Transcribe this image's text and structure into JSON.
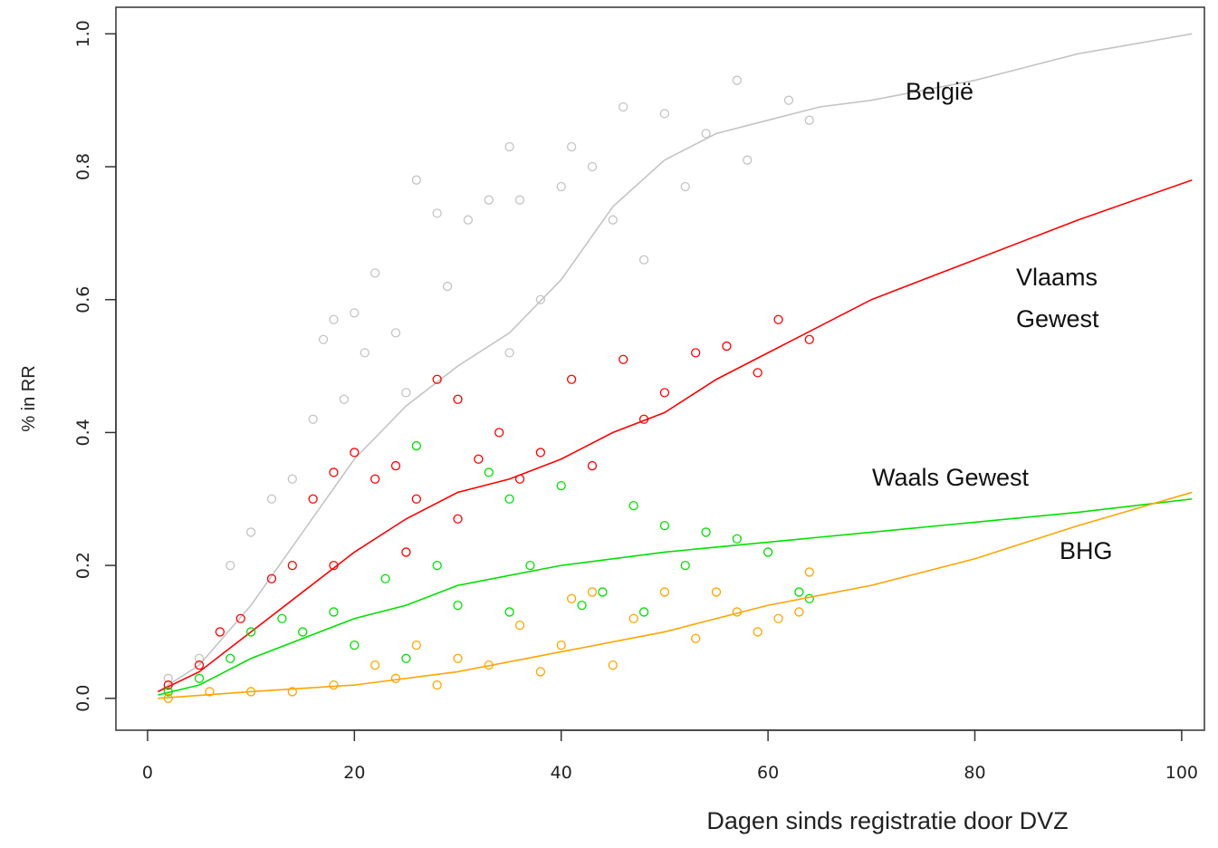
{
  "chart_data": {
    "type": "scatter",
    "x_label": "Dagen sinds registratie door DVZ",
    "y_label": "% in RR",
    "xlim": [
      -3.06,
      102.2
    ],
    "ylim": [
      -0.048,
      1.04
    ],
    "xticks": [
      0,
      20,
      40,
      60,
      80,
      100
    ],
    "yticks": [
      {
        "value": 0,
        "label": "0.0"
      },
      0.2,
      0.4,
      0.6,
      0.8,
      {
        "value": 1,
        "label": "1.0"
      }
    ],
    "series": [
      {
        "name": "België",
        "color": "#c4c4c4",
        "x": [
          2,
          5,
          8,
          10,
          12,
          14,
          16,
          17,
          18,
          20,
          21,
          22,
          24,
          26,
          28,
          29,
          31,
          33,
          35,
          36,
          38,
          40,
          41,
          43,
          45,
          46,
          48,
          50,
          52,
          54,
          57,
          58,
          62,
          64,
          30,
          35,
          25,
          19
        ],
        "values": [
          0.03,
          0.06,
          0.2,
          0.25,
          0.3,
          0.33,
          0.42,
          0.54,
          0.57,
          0.58,
          0.52,
          0.64,
          0.55,
          0.78,
          0.73,
          0.62,
          0.72,
          0.75,
          0.83,
          0.75,
          0.6,
          0.77,
          0.83,
          0.8,
          0.72,
          0.89,
          0.66,
          0.88,
          0.77,
          0.85,
          0.93,
          0.81,
          0.9,
          0.87,
          0.45,
          0.52,
          0.46,
          0.45
        ],
        "trend_x": [
          1,
          5,
          10,
          15,
          20,
          25,
          30,
          35,
          40,
          45,
          50,
          55,
          60,
          65,
          70,
          80,
          90,
          101
        ],
        "trend": [
          0.01,
          0.05,
          0.14,
          0.25,
          0.36,
          0.44,
          0.5,
          0.55,
          0.63,
          0.74,
          0.81,
          0.85,
          0.87,
          0.89,
          0.9,
          0.93,
          0.97,
          1.0
        ]
      },
      {
        "name": "Vlaams Gewest",
        "color": "#ff0000",
        "x": [
          2,
          5,
          7,
          9,
          12,
          14,
          16,
          18,
          20,
          22,
          24,
          26,
          28,
          30,
          32,
          34,
          36,
          38,
          41,
          43,
          46,
          48,
          50,
          53,
          56,
          59,
          61,
          64,
          25,
          30,
          18
        ],
        "values": [
          0.02,
          0.05,
          0.1,
          0.12,
          0.18,
          0.2,
          0.3,
          0.34,
          0.37,
          0.33,
          0.35,
          0.3,
          0.48,
          0.45,
          0.36,
          0.4,
          0.33,
          0.37,
          0.48,
          0.35,
          0.51,
          0.42,
          0.46,
          0.52,
          0.53,
          0.49,
          0.57,
          0.54,
          0.22,
          0.27,
          0.2
        ],
        "trend_x": [
          1,
          5,
          10,
          15,
          20,
          25,
          30,
          35,
          40,
          45,
          50,
          55,
          60,
          65,
          70,
          80,
          90,
          101
        ],
        "trend": [
          0.01,
          0.04,
          0.1,
          0.16,
          0.22,
          0.27,
          0.31,
          0.33,
          0.36,
          0.4,
          0.43,
          0.48,
          0.52,
          0.56,
          0.6,
          0.66,
          0.72,
          0.78
        ]
      },
      {
        "name": "Waals Gewest",
        "color": "#00e000",
        "x": [
          2,
          5,
          8,
          10,
          13,
          15,
          18,
          20,
          23,
          26,
          28,
          30,
          33,
          35,
          37,
          40,
          42,
          44,
          47,
          48,
          50,
          52,
          54,
          57,
          60,
          63,
          64,
          35,
          25
        ],
        "values": [
          0.01,
          0.03,
          0.06,
          0.1,
          0.12,
          0.1,
          0.13,
          0.08,
          0.18,
          0.38,
          0.2,
          0.14,
          0.34,
          0.3,
          0.2,
          0.32,
          0.14,
          0.16,
          0.29,
          0.13,
          0.26,
          0.2,
          0.25,
          0.24,
          0.22,
          0.16,
          0.15,
          0.13,
          0.06
        ],
        "trend_x": [
          1,
          5,
          10,
          15,
          20,
          25,
          30,
          40,
          50,
          60,
          70,
          80,
          90,
          101
        ],
        "trend": [
          0.005,
          0.02,
          0.06,
          0.09,
          0.12,
          0.14,
          0.17,
          0.2,
          0.22,
          0.235,
          0.25,
          0.265,
          0.28,
          0.3
        ]
      },
      {
        "name": "BHG",
        "color": "#ffa500",
        "x": [
          2,
          6,
          10,
          14,
          18,
          22,
          26,
          28,
          30,
          33,
          36,
          38,
          40,
          43,
          45,
          47,
          50,
          53,
          55,
          57,
          59,
          61,
          63,
          64,
          41,
          24
        ],
        "values": [
          0.0,
          0.01,
          0.01,
          0.01,
          0.02,
          0.05,
          0.08,
          0.02,
          0.06,
          0.05,
          0.11,
          0.04,
          0.08,
          0.16,
          0.05,
          0.12,
          0.16,
          0.09,
          0.16,
          0.13,
          0.1,
          0.12,
          0.13,
          0.19,
          0.15,
          0.03
        ],
        "trend_x": [
          1,
          10,
          20,
          30,
          40,
          50,
          60,
          70,
          80,
          90,
          101
        ],
        "trend": [
          0.0,
          0.01,
          0.02,
          0.04,
          0.07,
          0.1,
          0.14,
          0.17,
          0.21,
          0.26,
          0.31
        ]
      }
    ]
  }
}
